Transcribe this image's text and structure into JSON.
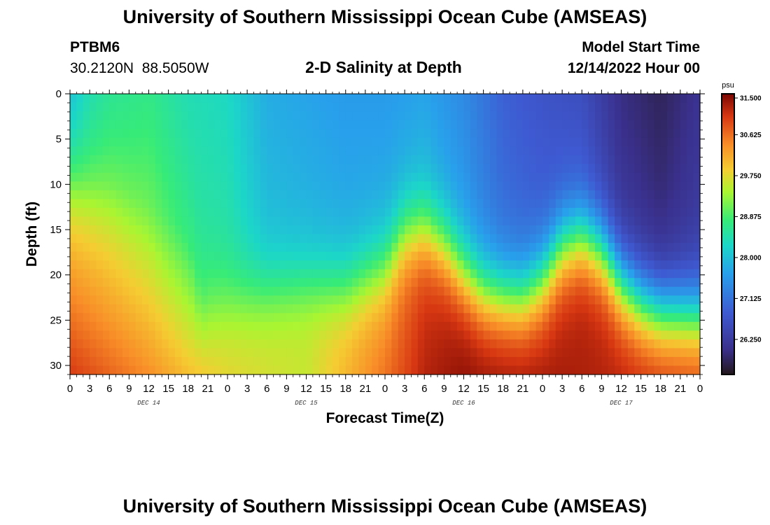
{
  "header": {
    "title": "University of Southern Mississippi Ocean Cube (AMSEAS)",
    "station_id": "PTBM6",
    "coords": "30.2120N  88.5050W",
    "chart_title": "2-D Salinity at Depth",
    "model_start_label": "Model Start Time",
    "model_start_value": "12/14/2022 Hour 00"
  },
  "footer": {
    "title": "University of Southern Mississippi Ocean Cube (AMSEAS)"
  },
  "colors": {
    "background": "#ffffff",
    "axis": "#000000"
  },
  "chart_data": {
    "type": "heatmap",
    "title": "2-D Salinity at Depth",
    "xlabel": "Forecast Time(Z)",
    "ylabel": "Depth (ft)",
    "x_range_hours": [
      0,
      96
    ],
    "y_range_ft": [
      0,
      31
    ],
    "x_tick_labels": [
      "0",
      "3",
      "6",
      "9",
      "12",
      "15",
      "18",
      "21",
      "0",
      "3",
      "6",
      "9",
      "12",
      "15",
      "18",
      "21",
      "0",
      "3",
      "6",
      "9",
      "12",
      "15",
      "18",
      "21",
      "0",
      "3",
      "6",
      "9",
      "12",
      "15",
      "18",
      "21",
      "0"
    ],
    "y_ticks": [
      0,
      5,
      10,
      15,
      20,
      25,
      30
    ],
    "day_labels": [
      "DEC 14",
      "DEC 15",
      "DEC 16",
      "DEC 17"
    ],
    "colorbar": {
      "unit": "psu",
      "min": 25.5,
      "max": 31.5,
      "tick_values": [
        31.5,
        30.625,
        29.75,
        28.875,
        28.0,
        27.125,
        26.25
      ],
      "tick_labels": [
        "31.500",
        "30.625",
        "29.750",
        "28.875",
        "28.000",
        "27.125",
        "26.250"
      ]
    },
    "interface_depth_ft": [
      [
        0,
        9
      ],
      [
        6,
        10
      ],
      [
        12,
        12
      ],
      [
        18,
        15
      ],
      [
        20,
        22
      ],
      [
        24,
        22.5
      ],
      [
        36,
        21.5
      ],
      [
        42,
        21.5
      ],
      [
        48,
        19
      ],
      [
        51,
        15.5
      ],
      [
        54,
        15
      ],
      [
        57,
        17
      ],
      [
        60,
        20
      ],
      [
        63,
        22
      ],
      [
        66,
        22.5
      ],
      [
        69,
        22.5
      ],
      [
        72,
        20.5
      ],
      [
        75,
        17
      ],
      [
        78,
        16
      ],
      [
        81,
        17.5
      ],
      [
        84,
        21
      ],
      [
        87,
        23
      ],
      [
        90,
        24
      ],
      [
        96,
        24.5
      ]
    ],
    "surface_salinity_psu": [
      [
        0,
        28.0
      ],
      [
        3,
        28.4
      ],
      [
        6,
        28.6
      ],
      [
        12,
        28.7
      ],
      [
        18,
        28.4
      ],
      [
        24,
        28.3
      ],
      [
        30,
        27.8
      ],
      [
        36,
        27.7
      ],
      [
        42,
        27.6
      ],
      [
        48,
        27.6
      ],
      [
        54,
        27.7
      ],
      [
        60,
        27.4
      ],
      [
        66,
        26.9
      ],
      [
        72,
        26.7
      ],
      [
        78,
        26.6
      ],
      [
        84,
        26.0
      ],
      [
        90,
        25.8
      ],
      [
        96,
        26.1
      ]
    ],
    "subsurface_salinity_psu": [
      [
        0,
        29.6
      ],
      [
        12,
        29.2
      ],
      [
        18,
        28.8
      ],
      [
        21,
        29.4
      ],
      [
        24,
        29.6
      ],
      [
        36,
        29.8
      ],
      [
        48,
        30.3
      ],
      [
        54,
        31.0
      ],
      [
        60,
        31.3
      ],
      [
        66,
        31.2
      ],
      [
        72,
        31.0
      ],
      [
        78,
        31.3
      ],
      [
        84,
        31.1
      ],
      [
        90,
        30.9
      ],
      [
        96,
        30.9
      ]
    ],
    "bottom_salinity_psu": [
      [
        0,
        31.0
      ],
      [
        12,
        30.4
      ],
      [
        18,
        30.0
      ],
      [
        24,
        29.8
      ],
      [
        36,
        29.6
      ],
      [
        48,
        30.6
      ],
      [
        54,
        31.2
      ],
      [
        60,
        31.4
      ],
      [
        72,
        31.3
      ],
      [
        84,
        31.2
      ],
      [
        96,
        31.0
      ]
    ]
  }
}
